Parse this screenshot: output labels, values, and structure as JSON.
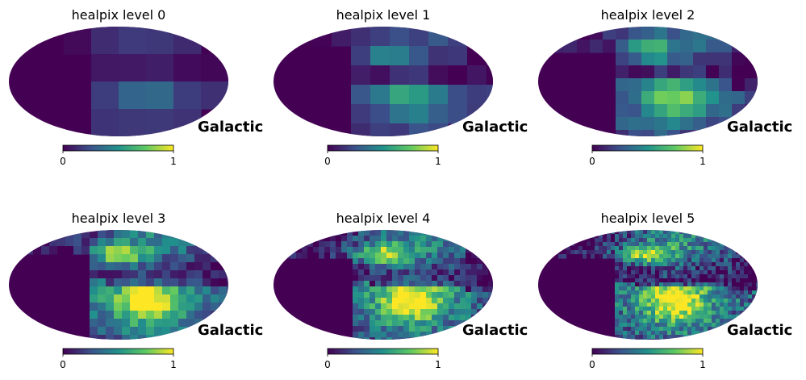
{
  "chart_data": {
    "type": "heatmap",
    "projection": "mollweide",
    "coord_label": "Galactic",
    "colormap": "viridis",
    "colormap_stops": [
      "#440154",
      "#3b528b",
      "#21918c",
      "#5ec962",
      "#fde725"
    ],
    "colorbar": {
      "range": [
        0,
        1
      ],
      "ticks": [
        "0",
        "1"
      ]
    },
    "panels": [
      {
        "title": "healpix level 0",
        "level": 0
      },
      {
        "title": "healpix level 1",
        "level": 1
      },
      {
        "title": "healpix level 2",
        "level": 2
      },
      {
        "title": "healpix level 3",
        "level": 3
      },
      {
        "title": "healpix level 4",
        "level": 4
      },
      {
        "title": "healpix level 5",
        "level": 5
      }
    ]
  }
}
